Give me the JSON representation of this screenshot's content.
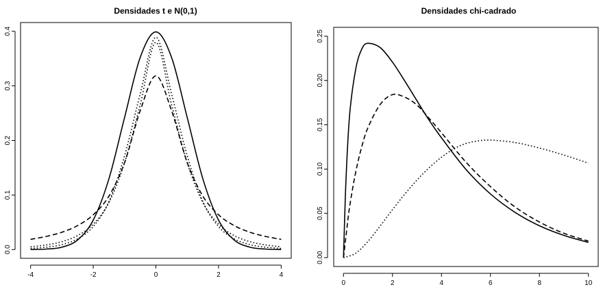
{
  "chart_data": [
    {
      "type": "line",
      "title": "Densidades t e N(0,1)",
      "xlabel": "",
      "ylabel": "",
      "xlim": [
        -4,
        4
      ],
      "ylim": [
        0,
        0.4
      ],
      "x_ticks": [
        "-4",
        "-2",
        "0",
        "2",
        "4"
      ],
      "y_ticks": [
        "0.0",
        "0.1",
        "0.2",
        "0.3",
        "0.4"
      ],
      "grid": false,
      "legend": "none",
      "series": [
        {
          "style": "solid",
          "x": [
            -4,
            -3.5,
            -3,
            -2.5,
            -2,
            -1.5,
            -1,
            -0.5,
            0,
            0.5,
            1,
            1.5,
            2,
            2.5,
            3,
            3.5,
            4
          ],
          "values": [
            0.0001,
            0.0009,
            0.0044,
            0.0175,
            0.054,
            0.1295,
            0.242,
            0.3521,
            0.3989,
            0.3521,
            0.242,
            0.1295,
            0.054,
            0.0175,
            0.0044,
            0.0009,
            0.0001
          ]
        },
        {
          "style": "dashed",
          "x": [
            -4,
            -3.5,
            -3,
            -2.5,
            -2,
            -1.5,
            -1,
            -0.5,
            0,
            0.5,
            1,
            1.5,
            2,
            2.5,
            3,
            3.5,
            4
          ],
          "values": [
            0.0187,
            0.0241,
            0.0318,
            0.0439,
            0.0637,
            0.0979,
            0.1592,
            0.2546,
            0.3183,
            0.2546,
            0.1592,
            0.0979,
            0.0637,
            0.0439,
            0.0318,
            0.0241,
            0.0187
          ]
        },
        {
          "style": "dotted",
          "x": [
            -4,
            -3.5,
            -3,
            -2.5,
            -2,
            -1.5,
            -1,
            -0.5,
            0,
            0.5,
            1,
            1.5,
            2,
            2.5,
            3,
            3.5,
            4
          ],
          "values": [
            0.0051,
            0.0085,
            0.0145,
            0.0256,
            0.0466,
            0.0861,
            0.1592,
            0.2656,
            0.3796,
            0.2656,
            0.1592,
            0.0861,
            0.0466,
            0.0256,
            0.0145,
            0.0085,
            0.0051
          ]
        },
        {
          "style": "dotted",
          "x": [
            -4,
            -3.5,
            -3,
            -2.5,
            -2,
            -1.5,
            -1,
            -0.5,
            0,
            0.5,
            1,
            1.5,
            2,
            2.5,
            3,
            3.5,
            4
          ],
          "values": [
            0.0021,
            0.0043,
            0.0091,
            0.0197,
            0.0422,
            0.0879,
            0.1719,
            0.2853,
            0.3891,
            0.2853,
            0.1719,
            0.0879,
            0.0422,
            0.0197,
            0.0091,
            0.0043,
            0.0021
          ]
        }
      ]
    },
    {
      "type": "line",
      "title": "Densidades chi-cadrado",
      "xlabel": "",
      "ylabel": "",
      "xlim": [
        0,
        10
      ],
      "ylim": [
        0,
        0.25
      ],
      "x_ticks": [
        "0",
        "2",
        "4",
        "6",
        "8",
        "10"
      ],
      "y_ticks": [
        "0.00",
        "0.05",
        "0.10",
        "0.15",
        "0.20",
        "0.25"
      ],
      "grid": false,
      "legend": "none",
      "series": [
        {
          "style": "solid",
          "x": [
            0,
            0.1,
            0.25,
            0.5,
            0.75,
            1,
            1.5,
            2,
            2.5,
            3,
            3.5,
            4,
            5,
            6,
            7,
            8,
            9,
            10
          ],
          "values": [
            0,
            0.0868,
            0.1611,
            0.213,
            0.2357,
            0.242,
            0.2371,
            0.2207,
            0.1995,
            0.1771,
            0.155,
            0.1353,
            0.0996,
            0.0719,
            0.0512,
            0.036,
            0.0251,
            0.0172
          ]
        },
        {
          "style": "dashed",
          "x": [
            0,
            0.1,
            0.25,
            0.5,
            0.75,
            1,
            1.5,
            2,
            2.5,
            3,
            3.5,
            4,
            5,
            6,
            7,
            8,
            9,
            10
          ],
          "values": [
            0,
            0.024,
            0.0574,
            0.0968,
            0.1256,
            0.1468,
            0.173,
            0.184,
            0.1812,
            0.1723,
            0.1571,
            0.141,
            0.1078,
            0.0802,
            0.0573,
            0.0402,
            0.0275,
            0.0187
          ]
        },
        {
          "style": "dotted",
          "x": [
            0,
            0.5,
            1,
            1.5,
            2,
            2.5,
            3,
            3.5,
            4,
            4.5,
            5,
            5.5,
            6,
            7,
            8,
            9,
            10
          ],
          "values": [
            0,
            0.005,
            0.0184,
            0.0359,
            0.0542,
            0.0716,
            0.0876,
            0.1016,
            0.1133,
            0.1227,
            0.1289,
            0.1318,
            0.1327,
            0.13,
            0.1237,
            0.1158,
            0.1067
          ]
        }
      ]
    }
  ]
}
